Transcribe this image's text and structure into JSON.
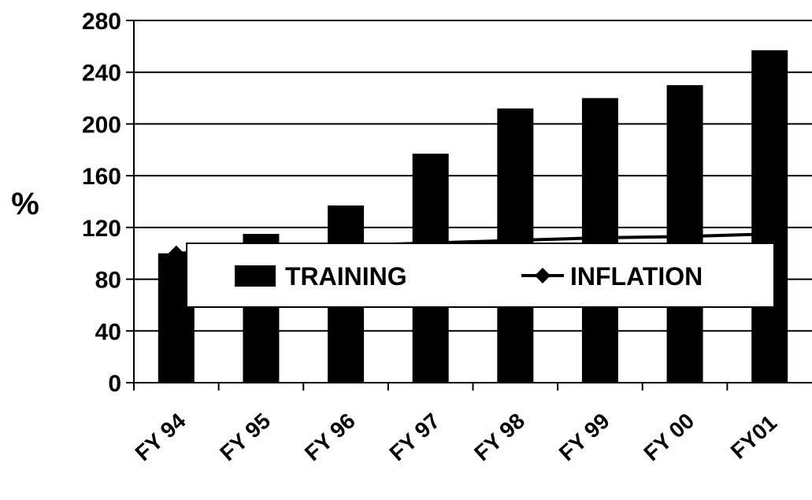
{
  "chart_data": {
    "type": "bar",
    "categories": [
      "FY 94",
      "FY 95",
      "FY 96",
      "FY 97",
      "FY 98",
      "FY 99",
      "FY 00",
      "FY01"
    ],
    "series": [
      {
        "name": "TRAINING",
        "kind": "bar",
        "values": [
          100,
          115,
          137,
          177,
          212,
          220,
          230,
          257
        ]
      },
      {
        "name": "INFLATION",
        "kind": "line",
        "values": [
          100,
          103,
          106,
          108,
          110,
          112,
          113,
          115
        ]
      }
    ],
    "title": "",
    "xlabel": "",
    "ylabel": "%",
    "ylim": [
      0,
      280
    ],
    "yticks": [
      0,
      40,
      80,
      120,
      160,
      200,
      240,
      280
    ],
    "grid": true,
    "legend": "center",
    "colors": {
      "bars": "#000000",
      "line": "#000000",
      "background": "#ffffff"
    }
  }
}
